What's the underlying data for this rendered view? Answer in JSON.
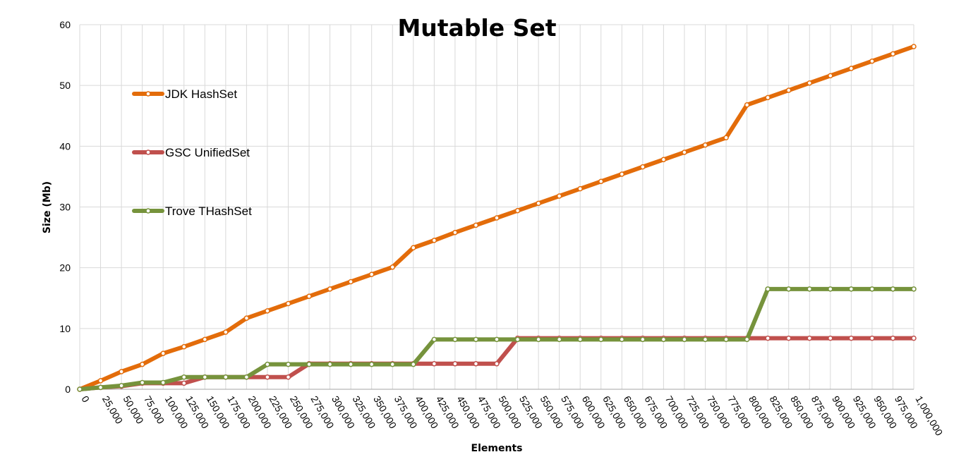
{
  "chart_data": {
    "type": "line",
    "title": "Mutable Set",
    "xlabel": "Elements",
    "ylabel": "Size (Mb)",
    "ylim": [
      0,
      60
    ],
    "yticks": [
      0,
      10,
      20,
      30,
      40,
      50,
      60
    ],
    "grid": true,
    "legend_position": "left",
    "x": [
      "0",
      "25,000",
      "50,000",
      "75,000",
      "100,000",
      "125,000",
      "150,000",
      "175,000",
      "200,000",
      "225,000",
      "250,000",
      "275,000",
      "300,000",
      "325,000",
      "350,000",
      "375,000",
      "400,000",
      "425,000",
      "450,000",
      "475,000",
      "500,000",
      "525,000",
      "550,000",
      "575,000",
      "600,000",
      "625,000",
      "650,000",
      "675,000",
      "700,000",
      "725,000",
      "750,000",
      "775,000",
      "800,000",
      "825,000",
      "850,000",
      "875,000",
      "900,000",
      "925,000",
      "950,000",
      "975,000",
      "1,000,000"
    ],
    "series": [
      {
        "name": "JDK HashSet",
        "color": "#e36c0a",
        "values": [
          0,
          1.4,
          2.9,
          4.1,
          5.9,
          7.0,
          8.2,
          9.4,
          11.7,
          12.9,
          14.1,
          15.3,
          16.5,
          17.7,
          18.9,
          20.1,
          23.3,
          24.5,
          25.8,
          27.0,
          28.2,
          29.4,
          30.6,
          31.8,
          33.0,
          34.2,
          35.4,
          36.6,
          37.8,
          39.0,
          40.2,
          41.4,
          46.8,
          48.0,
          49.2,
          50.4,
          51.6,
          52.8,
          54.0,
          55.2,
          56.4
        ]
      },
      {
        "name": "GSC UnifiedSet",
        "color": "#c0504d",
        "values": [
          0,
          0.3,
          0.5,
          1.0,
          1.0,
          1.0,
          2.0,
          2.0,
          2.0,
          2.0,
          2.0,
          4.2,
          4.2,
          4.2,
          4.2,
          4.2,
          4.2,
          4.2,
          4.2,
          4.2,
          4.2,
          8.4,
          8.4,
          8.4,
          8.4,
          8.4,
          8.4,
          8.4,
          8.4,
          8.4,
          8.4,
          8.4,
          8.4,
          8.4,
          8.4,
          8.4,
          8.4,
          8.4,
          8.4,
          8.4,
          8.4
        ]
      },
      {
        "name": "Trove THashSet",
        "color": "#76933c",
        "values": [
          0,
          0.3,
          0.6,
          1.1,
          1.1,
          2.0,
          2.0,
          2.0,
          2.0,
          4.1,
          4.1,
          4.1,
          4.1,
          4.1,
          4.1,
          4.1,
          4.1,
          8.2,
          8.2,
          8.2,
          8.2,
          8.2,
          8.2,
          8.2,
          8.2,
          8.2,
          8.2,
          8.2,
          8.2,
          8.2,
          8.2,
          8.2,
          8.2,
          16.5,
          16.5,
          16.5,
          16.5,
          16.5,
          16.5,
          16.5,
          16.5
        ]
      }
    ]
  }
}
